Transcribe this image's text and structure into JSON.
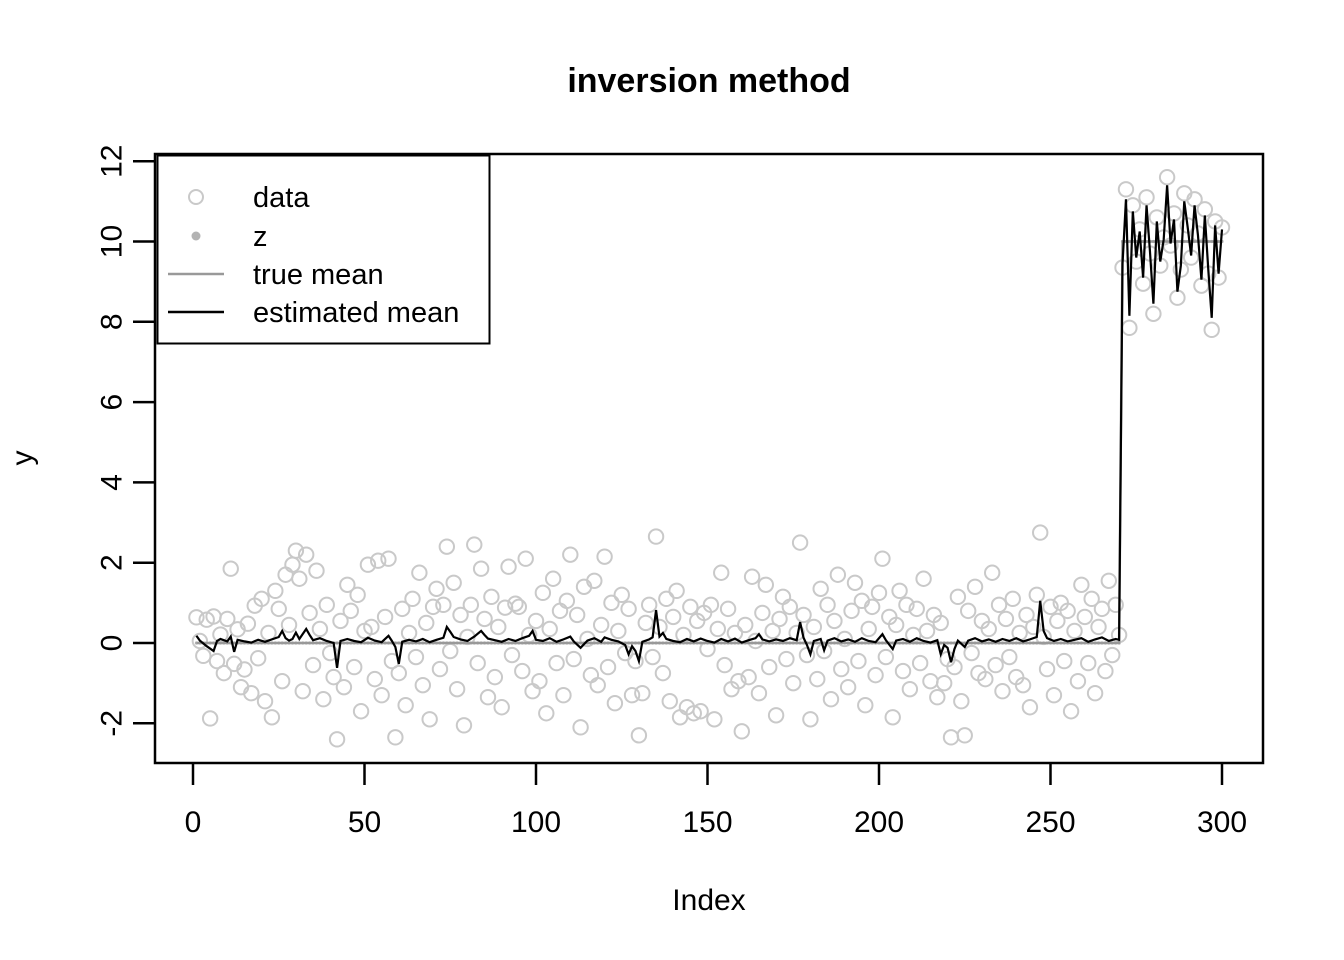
{
  "title": "inversion method",
  "x_axis": {
    "label": "Index",
    "ticks": [
      0,
      50,
      100,
      150,
      200,
      250,
      300
    ]
  },
  "y_axis": {
    "label": "y",
    "ticks": [
      -2,
      0,
      2,
      4,
      6,
      8,
      10,
      12
    ]
  },
  "legend": {
    "position": "topleft",
    "items": [
      {
        "label": "data",
        "marker": "open-circle",
        "color": "#c9c9c9"
      },
      {
        "label": "z",
        "marker": "filled-dot",
        "color": "#b3b3b3"
      },
      {
        "label": "true mean",
        "marker": "line",
        "color": "#999999"
      },
      {
        "label": "estimated mean",
        "marker": "line",
        "color": "#000000"
      }
    ]
  },
  "colors": {
    "background": "#ffffff",
    "axis": "#000000",
    "data_points": "#c9c9c9",
    "z_points": "#b3b3b3",
    "true_mean": "#999999",
    "estimated_mean": "#000000"
  },
  "chart_data": {
    "type": "scatter",
    "title": "inversion method",
    "xlabel": "Index",
    "ylabel": "y",
    "xlim": [
      0,
      300
    ],
    "ylim": [
      -3,
      12.2
    ],
    "x_ticks": [
      0,
      50,
      100,
      150,
      200,
      250,
      300
    ],
    "y_ticks": [
      -2,
      0,
      2,
      4,
      6,
      8,
      10,
      12
    ],
    "grid": false,
    "legend_position": "topleft",
    "changepoint_index": 271,
    "series": [
      {
        "name": "data",
        "type": "points",
        "marker": "open-circle",
        "color": "#c9c9c9",
        "x_start": 1,
        "y": [
          0.64,
          0.05,
          -0.32,
          0.58,
          -1.88,
          0.66,
          -0.45,
          0.21,
          -0.75,
          0.6,
          1.85,
          -0.52,
          0.34,
          -1.1,
          -0.66,
          0.48,
          -1.25,
          0.93,
          -0.38,
          1.1,
          -1.45,
          0.25,
          -1.85,
          1.3,
          0.85,
          -0.95,
          1.7,
          0.45,
          1.95,
          2.3,
          1.6,
          -1.2,
          2.2,
          0.75,
          -0.55,
          1.8,
          0.35,
          -1.4,
          0.95,
          -0.25,
          -0.85,
          -2.4,
          0.55,
          -1.1,
          1.45,
          0.8,
          -0.6,
          1.2,
          -1.7,
          0.3,
          1.95,
          0.4,
          -0.9,
          2.05,
          -1.3,
          0.65,
          2.1,
          -0.45,
          -2.35,
          -0.75,
          0.85,
          -1.55,
          0.25,
          1.1,
          -0.35,
          1.75,
          -1.05,
          0.5,
          -1.9,
          0.9,
          1.35,
          -0.65,
          0.95,
          2.4,
          -0.2,
          1.5,
          -1.15,
          0.7,
          -2.05,
          0.15,
          0.95,
          2.45,
          -0.5,
          1.85,
          0.6,
          -1.35,
          1.15,
          -0.85,
          0.4,
          -1.6,
          0.88,
          1.9,
          -0.3,
          0.98,
          0.9,
          -0.7,
          2.1,
          0.2,
          -1.2,
          0.55,
          -0.95,
          1.25,
          -1.75,
          0.35,
          1.6,
          -0.5,
          0.8,
          -1.3,
          1.05,
          2.2,
          -0.4,
          0.7,
          -2.1,
          1.4,
          0.1,
          -0.8,
          1.55,
          -1.05,
          0.45,
          2.15,
          -0.6,
          1.0,
          -1.5,
          0.3,
          1.2,
          -0.25,
          0.85,
          -1.3,
          -0.45,
          -2.3,
          -1.25,
          0.5,
          0.95,
          -0.35,
          2.65,
          0.4,
          -0.75,
          1.1,
          -1.45,
          0.65,
          1.3,
          -1.85,
          0.2,
          -1.6,
          0.9,
          -1.75,
          0.55,
          -1.7,
          0.75,
          -0.15,
          0.95,
          -1.9,
          0.35,
          1.75,
          -0.55,
          0.85,
          -1.15,
          0.25,
          -0.95,
          -2.2,
          0.45,
          -0.85,
          1.65,
          0.05,
          -1.25,
          0.75,
          1.45,
          -0.6,
          0.3,
          -1.8,
          0.6,
          1.15,
          -0.4,
          0.9,
          -1.0,
          0.25,
          2.5,
          0.7,
          -0.3,
          -1.9,
          0.4,
          -0.9,
          1.35,
          -0.2,
          0.95,
          -1.4,
          0.55,
          1.7,
          -0.65,
          0.1,
          -1.1,
          0.8,
          1.5,
          -0.45,
          1.05,
          -1.55,
          0.35,
          0.9,
          -0.8,
          1.25,
          2.1,
          -0.35,
          0.65,
          -1.85,
          0.45,
          1.3,
          -0.7,
          0.95,
          -1.15,
          0.2,
          0.85,
          -0.5,
          1.6,
          0.3,
          -0.95,
          0.7,
          -1.35,
          0.5,
          -1.0,
          -0.4,
          -2.35,
          -0.6,
          1.15,
          -1.45,
          -2.3,
          0.8,
          -0.25,
          1.4,
          -0.75,
          0.55,
          -0.9,
          0.35,
          1.75,
          -0.55,
          0.95,
          -1.2,
          0.6,
          -0.35,
          1.1,
          -0.85,
          0.25,
          -1.05,
          0.7,
          -1.6,
          0.4,
          1.2,
          2.75,
          0.15,
          -0.65,
          0.9,
          -1.3,
          0.55,
          1.0,
          -0.45,
          0.8,
          -1.7,
          0.3,
          -0.95,
          1.45,
          0.65,
          -0.5,
          1.1,
          -1.25,
          0.4,
          0.85,
          -0.7,
          1.55,
          -0.3,
          0.95,
          0.2,
          9.35,
          11.3,
          7.85,
          10.9,
          9.5,
          10.3,
          8.95,
          11.1,
          9.7,
          8.2,
          10.6,
          9.4,
          10.1,
          11.6,
          9.9,
          10.7,
          8.6,
          9.3,
          11.2,
          10.4,
          9.6,
          11.05,
          10.2,
          8.9,
          10.8,
          9.2,
          7.8,
          10.5,
          9.1,
          10.35
        ]
      },
      {
        "name": "z",
        "type": "points",
        "marker": "filled-dot",
        "color": "#b3b3b3",
        "segments": [
          {
            "from": 1,
            "to": 270,
            "value": 0
          },
          {
            "from": 271,
            "to": 300,
            "value": 10
          }
        ]
      },
      {
        "name": "true mean",
        "type": "line",
        "color": "#999999",
        "segments": [
          {
            "from": 1,
            "to": 270,
            "value": 0
          },
          {
            "from": 271,
            "to": 300,
            "value": 10
          }
        ]
      },
      {
        "name": "estimated mean",
        "type": "line",
        "color": "#000000",
        "points": [
          [
            1,
            0.18
          ],
          [
            2,
            0.06
          ],
          [
            4,
            -0.08
          ],
          [
            6,
            -0.2
          ],
          [
            7,
            0.05
          ],
          [
            8,
            0.1
          ],
          [
            10,
            0.04
          ],
          [
            11,
            0.16
          ],
          [
            12,
            -0.22
          ],
          [
            13,
            0.08
          ],
          [
            15,
            0.04
          ],
          [
            17,
            0.01
          ],
          [
            19,
            0.08
          ],
          [
            21,
            0.03
          ],
          [
            23,
            0.09
          ],
          [
            25,
            0.15
          ],
          [
            26,
            0.3
          ],
          [
            27,
            0.12
          ],
          [
            28,
            0.06
          ],
          [
            29,
            0.1
          ],
          [
            30,
            0.26
          ],
          [
            31,
            0.1
          ],
          [
            33,
            0.35
          ],
          [
            34,
            0.2
          ],
          [
            35,
            0.07
          ],
          [
            37,
            0.12
          ],
          [
            39,
            0.05
          ],
          [
            41,
            0.0
          ],
          [
            42,
            -0.62
          ],
          [
            43,
            0.05
          ],
          [
            45,
            0.1
          ],
          [
            47,
            0.05
          ],
          [
            49,
            0.02
          ],
          [
            51,
            0.13
          ],
          [
            53,
            0.06
          ],
          [
            55,
            0.02
          ],
          [
            57,
            0.18
          ],
          [
            58,
            0.05
          ],
          [
            59,
            -0.1
          ],
          [
            60,
            -0.52
          ],
          [
            61,
            0.03
          ],
          [
            63,
            0.08
          ],
          [
            65,
            0.04
          ],
          [
            67,
            0.1
          ],
          [
            69,
            0.02
          ],
          [
            71,
            0.08
          ],
          [
            73,
            0.13
          ],
          [
            74,
            0.4
          ],
          [
            75,
            0.28
          ],
          [
            76,
            0.15
          ],
          [
            78,
            0.09
          ],
          [
            80,
            0.05
          ],
          [
            82,
            0.16
          ],
          [
            84,
            0.3
          ],
          [
            85,
            0.2
          ],
          [
            86,
            0.11
          ],
          [
            88,
            0.07
          ],
          [
            90,
            0.03
          ],
          [
            92,
            0.1
          ],
          [
            94,
            0.05
          ],
          [
            96,
            0.12
          ],
          [
            98,
            0.18
          ],
          [
            99,
            0.3
          ],
          [
            100,
            0.08
          ],
          [
            102,
            0.05
          ],
          [
            104,
            0.12
          ],
          [
            106,
            0.03
          ],
          [
            108,
            0.09
          ],
          [
            110,
            0.16
          ],
          [
            111,
            0.04
          ],
          [
            113,
            -0.12
          ],
          [
            115,
            0.06
          ],
          [
            117,
            0.12
          ],
          [
            119,
            0.03
          ],
          [
            120,
            0.14
          ],
          [
            122,
            0.08
          ],
          [
            124,
            0.04
          ],
          [
            126,
            -0.05
          ],
          [
            127,
            -0.28
          ],
          [
            128,
            -0.08
          ],
          [
            129,
            -0.2
          ],
          [
            130,
            -0.45
          ],
          [
            131,
            0.03
          ],
          [
            133,
            0.09
          ],
          [
            134,
            0.14
          ],
          [
            135,
            0.82
          ],
          [
            136,
            0.16
          ],
          [
            137,
            0.25
          ],
          [
            138,
            0.1
          ],
          [
            140,
            0.05
          ],
          [
            142,
            0.02
          ],
          [
            144,
            0.1
          ],
          [
            146,
            0.04
          ],
          [
            148,
            0.11
          ],
          [
            150,
            0.05
          ],
          [
            152,
            0.01
          ],
          [
            154,
            0.1
          ],
          [
            156,
            0.04
          ],
          [
            158,
            0.11
          ],
          [
            160,
            0.01
          ],
          [
            162,
            0.07
          ],
          [
            164,
            0.12
          ],
          [
            165,
            0.22
          ],
          [
            166,
            0.09
          ],
          [
            168,
            0.04
          ],
          [
            170,
            0.09
          ],
          [
            172,
            0.05
          ],
          [
            174,
            0.12
          ],
          [
            176,
            0.07
          ],
          [
            177,
            0.52
          ],
          [
            178,
            0.13
          ],
          [
            179,
            -0.05
          ],
          [
            180,
            -0.28
          ],
          [
            181,
            0.05
          ],
          [
            183,
            0.1
          ],
          [
            184,
            -0.18
          ],
          [
            185,
            0.06
          ],
          [
            187,
            0.12
          ],
          [
            189,
            0.04
          ],
          [
            191,
            0.09
          ],
          [
            193,
            0.03
          ],
          [
            195,
            0.12
          ],
          [
            197,
            0.05
          ],
          [
            199,
            0.02
          ],
          [
            201,
            0.22
          ],
          [
            202,
            0.07
          ],
          [
            204,
            -0.15
          ],
          [
            205,
            0.06
          ],
          [
            207,
            0.1
          ],
          [
            209,
            0.03
          ],
          [
            211,
            0.12
          ],
          [
            213,
            0.05
          ],
          [
            215,
            0.01
          ],
          [
            217,
            0.07
          ],
          [
            218,
            -0.28
          ],
          [
            219,
            -0.05
          ],
          [
            220,
            -0.12
          ],
          [
            221,
            -0.48
          ],
          [
            222,
            -0.15
          ],
          [
            223,
            0.06
          ],
          [
            225,
            -0.1
          ],
          [
            226,
            0.06
          ],
          [
            228,
            0.12
          ],
          [
            230,
            0.04
          ],
          [
            232,
            0.09
          ],
          [
            234,
            0.03
          ],
          [
            236,
            0.1
          ],
          [
            238,
            0.05
          ],
          [
            240,
            0.12
          ],
          [
            242,
            0.04
          ],
          [
            244,
            0.09
          ],
          [
            246,
            0.15
          ],
          [
            247,
            1.05
          ],
          [
            248,
            0.3
          ],
          [
            249,
            0.12
          ],
          [
            251,
            0.05
          ],
          [
            253,
            0.1
          ],
          [
            255,
            0.04
          ],
          [
            257,
            0.08
          ],
          [
            259,
            0.12
          ],
          [
            261,
            0.03
          ],
          [
            263,
            0.09
          ],
          [
            265,
            0.14
          ],
          [
            267,
            0.05
          ],
          [
            269,
            0.1
          ],
          [
            270,
            0.08
          ],
          [
            271,
            9.45
          ],
          [
            272,
            11.05
          ],
          [
            273,
            8.15
          ],
          [
            274,
            10.75
          ],
          [
            275,
            9.6
          ],
          [
            276,
            10.25
          ],
          [
            277,
            9.1
          ],
          [
            278,
            10.9
          ],
          [
            279,
            9.75
          ],
          [
            280,
            8.45
          ],
          [
            281,
            10.5
          ],
          [
            282,
            9.5
          ],
          [
            283,
            10.05
          ],
          [
            284,
            11.4
          ],
          [
            285,
            9.95
          ],
          [
            286,
            10.55
          ],
          [
            287,
            8.75
          ],
          [
            288,
            9.4
          ],
          [
            289,
            11.0
          ],
          [
            290,
            10.35
          ],
          [
            291,
            9.65
          ],
          [
            292,
            10.9
          ],
          [
            293,
            10.15
          ],
          [
            294,
            9.05
          ],
          [
            295,
            10.65
          ],
          [
            296,
            9.3
          ],
          [
            297,
            8.1
          ],
          [
            298,
            10.4
          ],
          [
            299,
            9.2
          ],
          [
            300,
            10.3
          ]
        ]
      }
    ]
  }
}
